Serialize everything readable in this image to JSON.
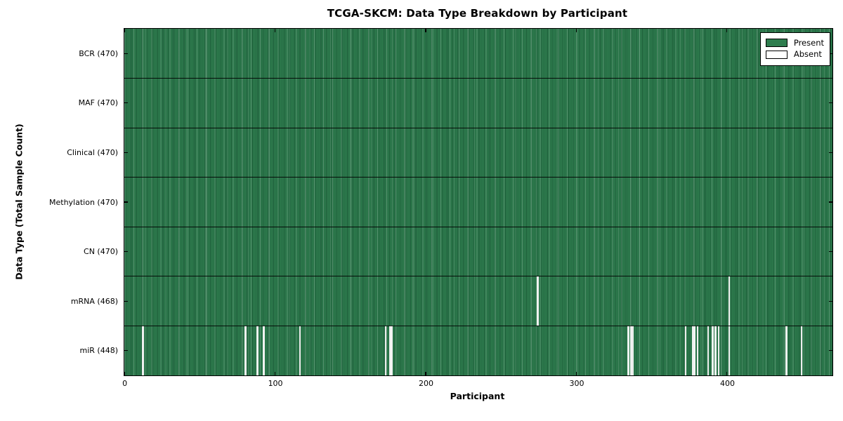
{
  "chart_data": {
    "type": "heatmap",
    "title": "TCGA-SKCM: Data Type Breakdown by Participant",
    "xlabel": "Participant",
    "ylabel": "Data Type (Total Sample Count)",
    "x_ticks": [
      0,
      100,
      200,
      300,
      400
    ],
    "x_range": [
      0,
      470
    ],
    "n_participants": 470,
    "grid": "row-separators",
    "legend_position": "upper-right",
    "legend": [
      {
        "label": "Present",
        "color": "#2e7d4e"
      },
      {
        "label": "Absent",
        "color": "#ffffff"
      }
    ],
    "colors": {
      "present": "#2e7d4e",
      "present_dark_line": "#1d5c39",
      "present_light_line": "#55a172",
      "absent": "#fbfbfb",
      "separator": "#000000",
      "frame": "#000000",
      "background": "#ffffff"
    },
    "rows": [
      {
        "name": "bcr",
        "label": "BCR (470)",
        "data_type": "BCR",
        "present_count": 470,
        "absent_participants": []
      },
      {
        "name": "maf",
        "label": "MAF (470)",
        "data_type": "MAF",
        "present_count": 470,
        "absent_participants": []
      },
      {
        "name": "clinical",
        "label": "Clinical (470)",
        "data_type": "Clinical",
        "present_count": 470,
        "absent_participants": []
      },
      {
        "name": "methylation",
        "label": "Methylation (470)",
        "data_type": "Methylation",
        "present_count": 470,
        "absent_participants": []
      },
      {
        "name": "cn",
        "label": "CN (470)",
        "data_type": "CN",
        "present_count": 470,
        "absent_participants": []
      },
      {
        "name": "mrna",
        "label": "mRNA (468)",
        "data_type": "mRNA",
        "present_count": 468,
        "absent_participants": [
          274,
          401
        ]
      },
      {
        "name": "mir",
        "label": "miR (448)",
        "data_type": "miR",
        "present_count": 448,
        "absent_participants": [
          12,
          80,
          88,
          92,
          116,
          173,
          176,
          177,
          334,
          336,
          337,
          372,
          377,
          378,
          380,
          387,
          390,
          392,
          394,
          401,
          439,
          449
        ]
      }
    ]
  }
}
